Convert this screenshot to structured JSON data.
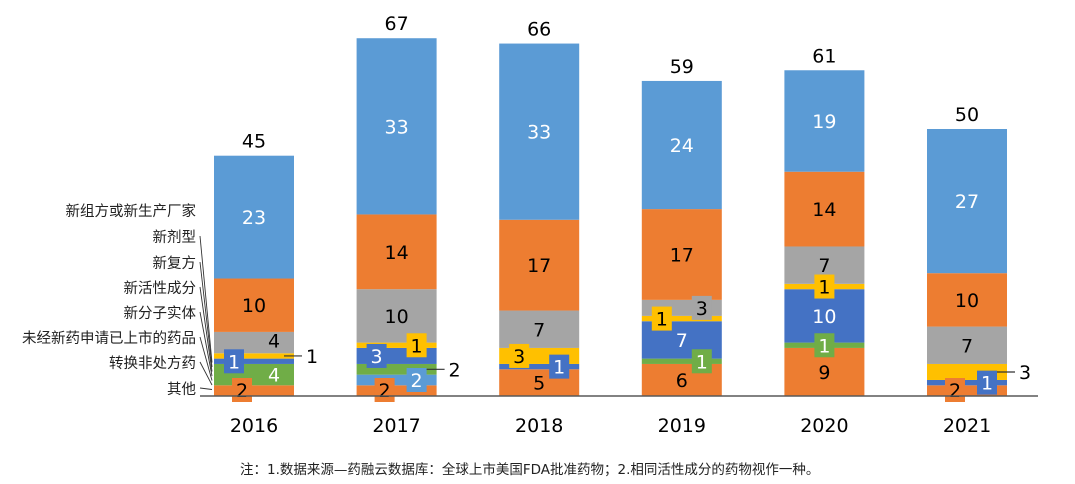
{
  "chart_data": {
    "type": "bar",
    "stacked": true,
    "categories": [
      "2016",
      "2017",
      "2018",
      "2019",
      "2020",
      "2021"
    ],
    "totals": [
      45,
      67,
      66,
      59,
      61,
      50
    ],
    "series": [
      {
        "name": "其他",
        "color": "#ED7D31",
        "values": [
          2,
          2,
          5,
          6,
          9,
          2
        ]
      },
      {
        "name": "转换非处方药",
        "color": "#5B9BD5",
        "values": [
          0,
          2,
          0,
          0,
          0,
          0
        ]
      },
      {
        "name": "未经新药申请已上市的药品",
        "color": "#70AD47",
        "values": [
          4,
          2,
          0,
          1,
          1,
          0
        ]
      },
      {
        "name": "新分子实体",
        "color": "#4472C4",
        "values": [
          1,
          3,
          1,
          7,
          10,
          1
        ]
      },
      {
        "name": "新活性成分",
        "color": "#FFC000",
        "values": [
          1,
          1,
          3,
          1,
          1,
          3
        ]
      },
      {
        "name": "新复方",
        "color": "#A5A5A5",
        "values": [
          4,
          10,
          7,
          3,
          7,
          7
        ]
      },
      {
        "name": "新剂型",
        "color": "#ED7D31",
        "values": [
          10,
          14,
          17,
          17,
          14,
          10
        ]
      },
      {
        "name": "新组方或新生产厂家",
        "color": "#5B9BD5",
        "values": [
          23,
          33,
          33,
          24,
          19,
          27
        ]
      }
    ],
    "legend_labels": [
      "新组方或新生产厂家",
      "新剂型",
      "新复方",
      "新活性成分",
      "新分子实体",
      "未经新药申请已上市的药品",
      "转换非处方药",
      "其他"
    ],
    "legend_position": "left",
    "title": "",
    "xlabel": "",
    "ylabel": "",
    "ylim": [
      0,
      70
    ],
    "grid": false
  },
  "footnote": "注：1.数据来源—药融云数据库：全球上市美国FDA批准药物；2.相同活性成分的药物视作一种。"
}
